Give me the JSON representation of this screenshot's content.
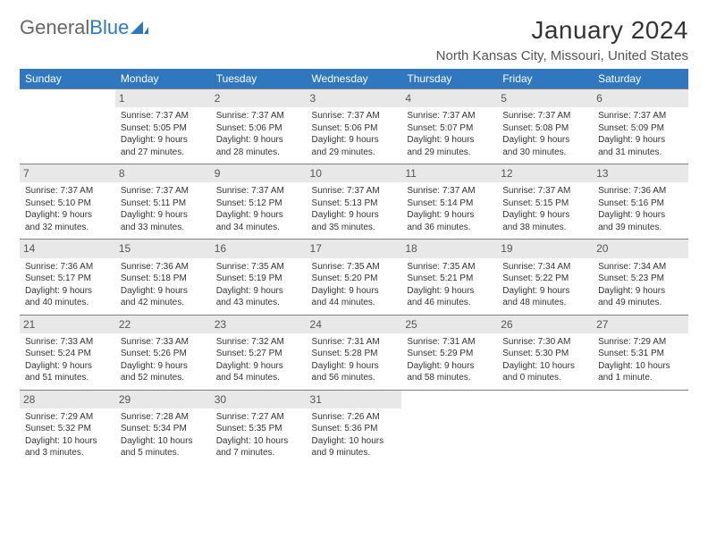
{
  "logo": {
    "part1": "General",
    "part2": "Blue"
  },
  "title": "January 2024",
  "location": "North Kansas City, Missouri, United States",
  "colors": {
    "header_bg": "#2f78bf",
    "header_text": "#ffffff",
    "daynum_bg": "#e8e8e8",
    "daynum_text": "#555555",
    "border": "#808080",
    "body_text": "#333333"
  },
  "daysOfWeek": [
    "Sunday",
    "Monday",
    "Tuesday",
    "Wednesday",
    "Thursday",
    "Friday",
    "Saturday"
  ],
  "weeks": [
    [
      {
        "n": "",
        "sr": "",
        "ss": "",
        "dl1": "",
        "dl2": ""
      },
      {
        "n": "1",
        "sr": "Sunrise: 7:37 AM",
        "ss": "Sunset: 5:05 PM",
        "dl1": "Daylight: 9 hours",
        "dl2": "and 27 minutes."
      },
      {
        "n": "2",
        "sr": "Sunrise: 7:37 AM",
        "ss": "Sunset: 5:06 PM",
        "dl1": "Daylight: 9 hours",
        "dl2": "and 28 minutes."
      },
      {
        "n": "3",
        "sr": "Sunrise: 7:37 AM",
        "ss": "Sunset: 5:06 PM",
        "dl1": "Daylight: 9 hours",
        "dl2": "and 29 minutes."
      },
      {
        "n": "4",
        "sr": "Sunrise: 7:37 AM",
        "ss": "Sunset: 5:07 PM",
        "dl1": "Daylight: 9 hours",
        "dl2": "and 29 minutes."
      },
      {
        "n": "5",
        "sr": "Sunrise: 7:37 AM",
        "ss": "Sunset: 5:08 PM",
        "dl1": "Daylight: 9 hours",
        "dl2": "and 30 minutes."
      },
      {
        "n": "6",
        "sr": "Sunrise: 7:37 AM",
        "ss": "Sunset: 5:09 PM",
        "dl1": "Daylight: 9 hours",
        "dl2": "and 31 minutes."
      }
    ],
    [
      {
        "n": "7",
        "sr": "Sunrise: 7:37 AM",
        "ss": "Sunset: 5:10 PM",
        "dl1": "Daylight: 9 hours",
        "dl2": "and 32 minutes."
      },
      {
        "n": "8",
        "sr": "Sunrise: 7:37 AM",
        "ss": "Sunset: 5:11 PM",
        "dl1": "Daylight: 9 hours",
        "dl2": "and 33 minutes."
      },
      {
        "n": "9",
        "sr": "Sunrise: 7:37 AM",
        "ss": "Sunset: 5:12 PM",
        "dl1": "Daylight: 9 hours",
        "dl2": "and 34 minutes."
      },
      {
        "n": "10",
        "sr": "Sunrise: 7:37 AM",
        "ss": "Sunset: 5:13 PM",
        "dl1": "Daylight: 9 hours",
        "dl2": "and 35 minutes."
      },
      {
        "n": "11",
        "sr": "Sunrise: 7:37 AM",
        "ss": "Sunset: 5:14 PM",
        "dl1": "Daylight: 9 hours",
        "dl2": "and 36 minutes."
      },
      {
        "n": "12",
        "sr": "Sunrise: 7:37 AM",
        "ss": "Sunset: 5:15 PM",
        "dl1": "Daylight: 9 hours",
        "dl2": "and 38 minutes."
      },
      {
        "n": "13",
        "sr": "Sunrise: 7:36 AM",
        "ss": "Sunset: 5:16 PM",
        "dl1": "Daylight: 9 hours",
        "dl2": "and 39 minutes."
      }
    ],
    [
      {
        "n": "14",
        "sr": "Sunrise: 7:36 AM",
        "ss": "Sunset: 5:17 PM",
        "dl1": "Daylight: 9 hours",
        "dl2": "and 40 minutes."
      },
      {
        "n": "15",
        "sr": "Sunrise: 7:36 AM",
        "ss": "Sunset: 5:18 PM",
        "dl1": "Daylight: 9 hours",
        "dl2": "and 42 minutes."
      },
      {
        "n": "16",
        "sr": "Sunrise: 7:35 AM",
        "ss": "Sunset: 5:19 PM",
        "dl1": "Daylight: 9 hours",
        "dl2": "and 43 minutes."
      },
      {
        "n": "17",
        "sr": "Sunrise: 7:35 AM",
        "ss": "Sunset: 5:20 PM",
        "dl1": "Daylight: 9 hours",
        "dl2": "and 44 minutes."
      },
      {
        "n": "18",
        "sr": "Sunrise: 7:35 AM",
        "ss": "Sunset: 5:21 PM",
        "dl1": "Daylight: 9 hours",
        "dl2": "and 46 minutes."
      },
      {
        "n": "19",
        "sr": "Sunrise: 7:34 AM",
        "ss": "Sunset: 5:22 PM",
        "dl1": "Daylight: 9 hours",
        "dl2": "and 48 minutes."
      },
      {
        "n": "20",
        "sr": "Sunrise: 7:34 AM",
        "ss": "Sunset: 5:23 PM",
        "dl1": "Daylight: 9 hours",
        "dl2": "and 49 minutes."
      }
    ],
    [
      {
        "n": "21",
        "sr": "Sunrise: 7:33 AM",
        "ss": "Sunset: 5:24 PM",
        "dl1": "Daylight: 9 hours",
        "dl2": "and 51 minutes."
      },
      {
        "n": "22",
        "sr": "Sunrise: 7:33 AM",
        "ss": "Sunset: 5:26 PM",
        "dl1": "Daylight: 9 hours",
        "dl2": "and 52 minutes."
      },
      {
        "n": "23",
        "sr": "Sunrise: 7:32 AM",
        "ss": "Sunset: 5:27 PM",
        "dl1": "Daylight: 9 hours",
        "dl2": "and 54 minutes."
      },
      {
        "n": "24",
        "sr": "Sunrise: 7:31 AM",
        "ss": "Sunset: 5:28 PM",
        "dl1": "Daylight: 9 hours",
        "dl2": "and 56 minutes."
      },
      {
        "n": "25",
        "sr": "Sunrise: 7:31 AM",
        "ss": "Sunset: 5:29 PM",
        "dl1": "Daylight: 9 hours",
        "dl2": "and 58 minutes."
      },
      {
        "n": "26",
        "sr": "Sunrise: 7:30 AM",
        "ss": "Sunset: 5:30 PM",
        "dl1": "Daylight: 10 hours",
        "dl2": "and 0 minutes."
      },
      {
        "n": "27",
        "sr": "Sunrise: 7:29 AM",
        "ss": "Sunset: 5:31 PM",
        "dl1": "Daylight: 10 hours",
        "dl2": "and 1 minute."
      }
    ],
    [
      {
        "n": "28",
        "sr": "Sunrise: 7:29 AM",
        "ss": "Sunset: 5:32 PM",
        "dl1": "Daylight: 10 hours",
        "dl2": "and 3 minutes."
      },
      {
        "n": "29",
        "sr": "Sunrise: 7:28 AM",
        "ss": "Sunset: 5:34 PM",
        "dl1": "Daylight: 10 hours",
        "dl2": "and 5 minutes."
      },
      {
        "n": "30",
        "sr": "Sunrise: 7:27 AM",
        "ss": "Sunset: 5:35 PM",
        "dl1": "Daylight: 10 hours",
        "dl2": "and 7 minutes."
      },
      {
        "n": "31",
        "sr": "Sunrise: 7:26 AM",
        "ss": "Sunset: 5:36 PM",
        "dl1": "Daylight: 10 hours",
        "dl2": "and 9 minutes."
      },
      {
        "n": "",
        "sr": "",
        "ss": "",
        "dl1": "",
        "dl2": ""
      },
      {
        "n": "",
        "sr": "",
        "ss": "",
        "dl1": "",
        "dl2": ""
      },
      {
        "n": "",
        "sr": "",
        "ss": "",
        "dl1": "",
        "dl2": ""
      }
    ]
  ]
}
